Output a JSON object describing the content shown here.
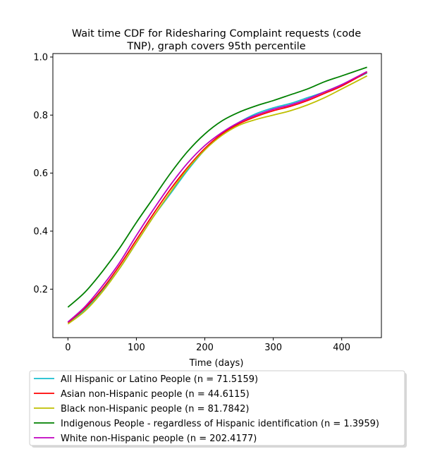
{
  "chart_data": {
    "type": "line",
    "title_line1": "Wait time CDF for Ridesharing Complaint  requests (code",
    "title_line2": "TNP), graph covers 95th percentile",
    "xlabel": "Time (days)",
    "ylabel": "",
    "xlim": [
      -22,
      458
    ],
    "ylim": [
      0.033,
      1.012
    ],
    "xticks": [
      0,
      100,
      200,
      300,
      400
    ],
    "yticks": [
      0.2,
      0.4,
      0.6,
      0.8,
      1.0
    ],
    "xtick_labels": [
      "0",
      "100",
      "200",
      "300",
      "400"
    ],
    "ytick_labels": [
      "0.2",
      "0.4",
      "0.6",
      "0.8",
      "1.0"
    ],
    "grid": false,
    "legend_position": "below chart",
    "series": [
      {
        "name": "All Hispanic or Latino People (n = 71.5159)",
        "color": "#17becf",
        "x": [
          0,
          25,
          50,
          75,
          100,
          125,
          150,
          175,
          200,
          225,
          250,
          275,
          300,
          325,
          350,
          375,
          400,
          437
        ],
        "y": [
          0.085,
          0.13,
          0.195,
          0.27,
          0.36,
          0.45,
          0.53,
          0.61,
          0.68,
          0.735,
          0.775,
          0.805,
          0.825,
          0.84,
          0.86,
          0.88,
          0.905,
          0.945
        ]
      },
      {
        "name": "Asian non-Hispanic people (n = 44.6115)",
        "color": "#ff0000",
        "x": [
          0,
          25,
          50,
          75,
          100,
          125,
          150,
          175,
          200,
          225,
          250,
          275,
          300,
          325,
          350,
          375,
          400,
          437
        ],
        "y": [
          0.085,
          0.135,
          0.2,
          0.28,
          0.37,
          0.46,
          0.545,
          0.62,
          0.685,
          0.735,
          0.77,
          0.795,
          0.815,
          0.83,
          0.85,
          0.875,
          0.9,
          0.948
        ]
      },
      {
        "name": "Black non-Hispanic people (n = 81.7842)",
        "color": "#bfbf00",
        "x": [
          0,
          25,
          50,
          75,
          100,
          125,
          150,
          175,
          200,
          225,
          250,
          275,
          300,
          325,
          350,
          375,
          400,
          437
        ],
        "y": [
          0.08,
          0.125,
          0.19,
          0.27,
          0.36,
          0.45,
          0.535,
          0.615,
          0.68,
          0.73,
          0.765,
          0.785,
          0.8,
          0.815,
          0.835,
          0.86,
          0.89,
          0.935
        ]
      },
      {
        "name": "Indigenous People - regardless of Hispanic identification (n = 1.3959)",
        "color": "#008000",
        "x": [
          0,
          25,
          50,
          75,
          100,
          125,
          150,
          175,
          200,
          225,
          250,
          275,
          300,
          325,
          350,
          375,
          400,
          437
        ],
        "y": [
          0.138,
          0.19,
          0.26,
          0.34,
          0.43,
          0.515,
          0.6,
          0.675,
          0.735,
          0.78,
          0.81,
          0.832,
          0.85,
          0.87,
          0.89,
          0.915,
          0.935,
          0.965
        ]
      },
      {
        "name": "White non-Hispanic people (n = 202.4177)",
        "color": "#bf00bf",
        "x": [
          0,
          25,
          50,
          75,
          100,
          125,
          150,
          175,
          200,
          225,
          250,
          275,
          300,
          325,
          350,
          375,
          400,
          437
        ],
        "y": [
          0.087,
          0.14,
          0.21,
          0.29,
          0.385,
          0.475,
          0.56,
          0.635,
          0.695,
          0.74,
          0.775,
          0.8,
          0.82,
          0.835,
          0.855,
          0.88,
          0.905,
          0.95
        ]
      }
    ]
  }
}
